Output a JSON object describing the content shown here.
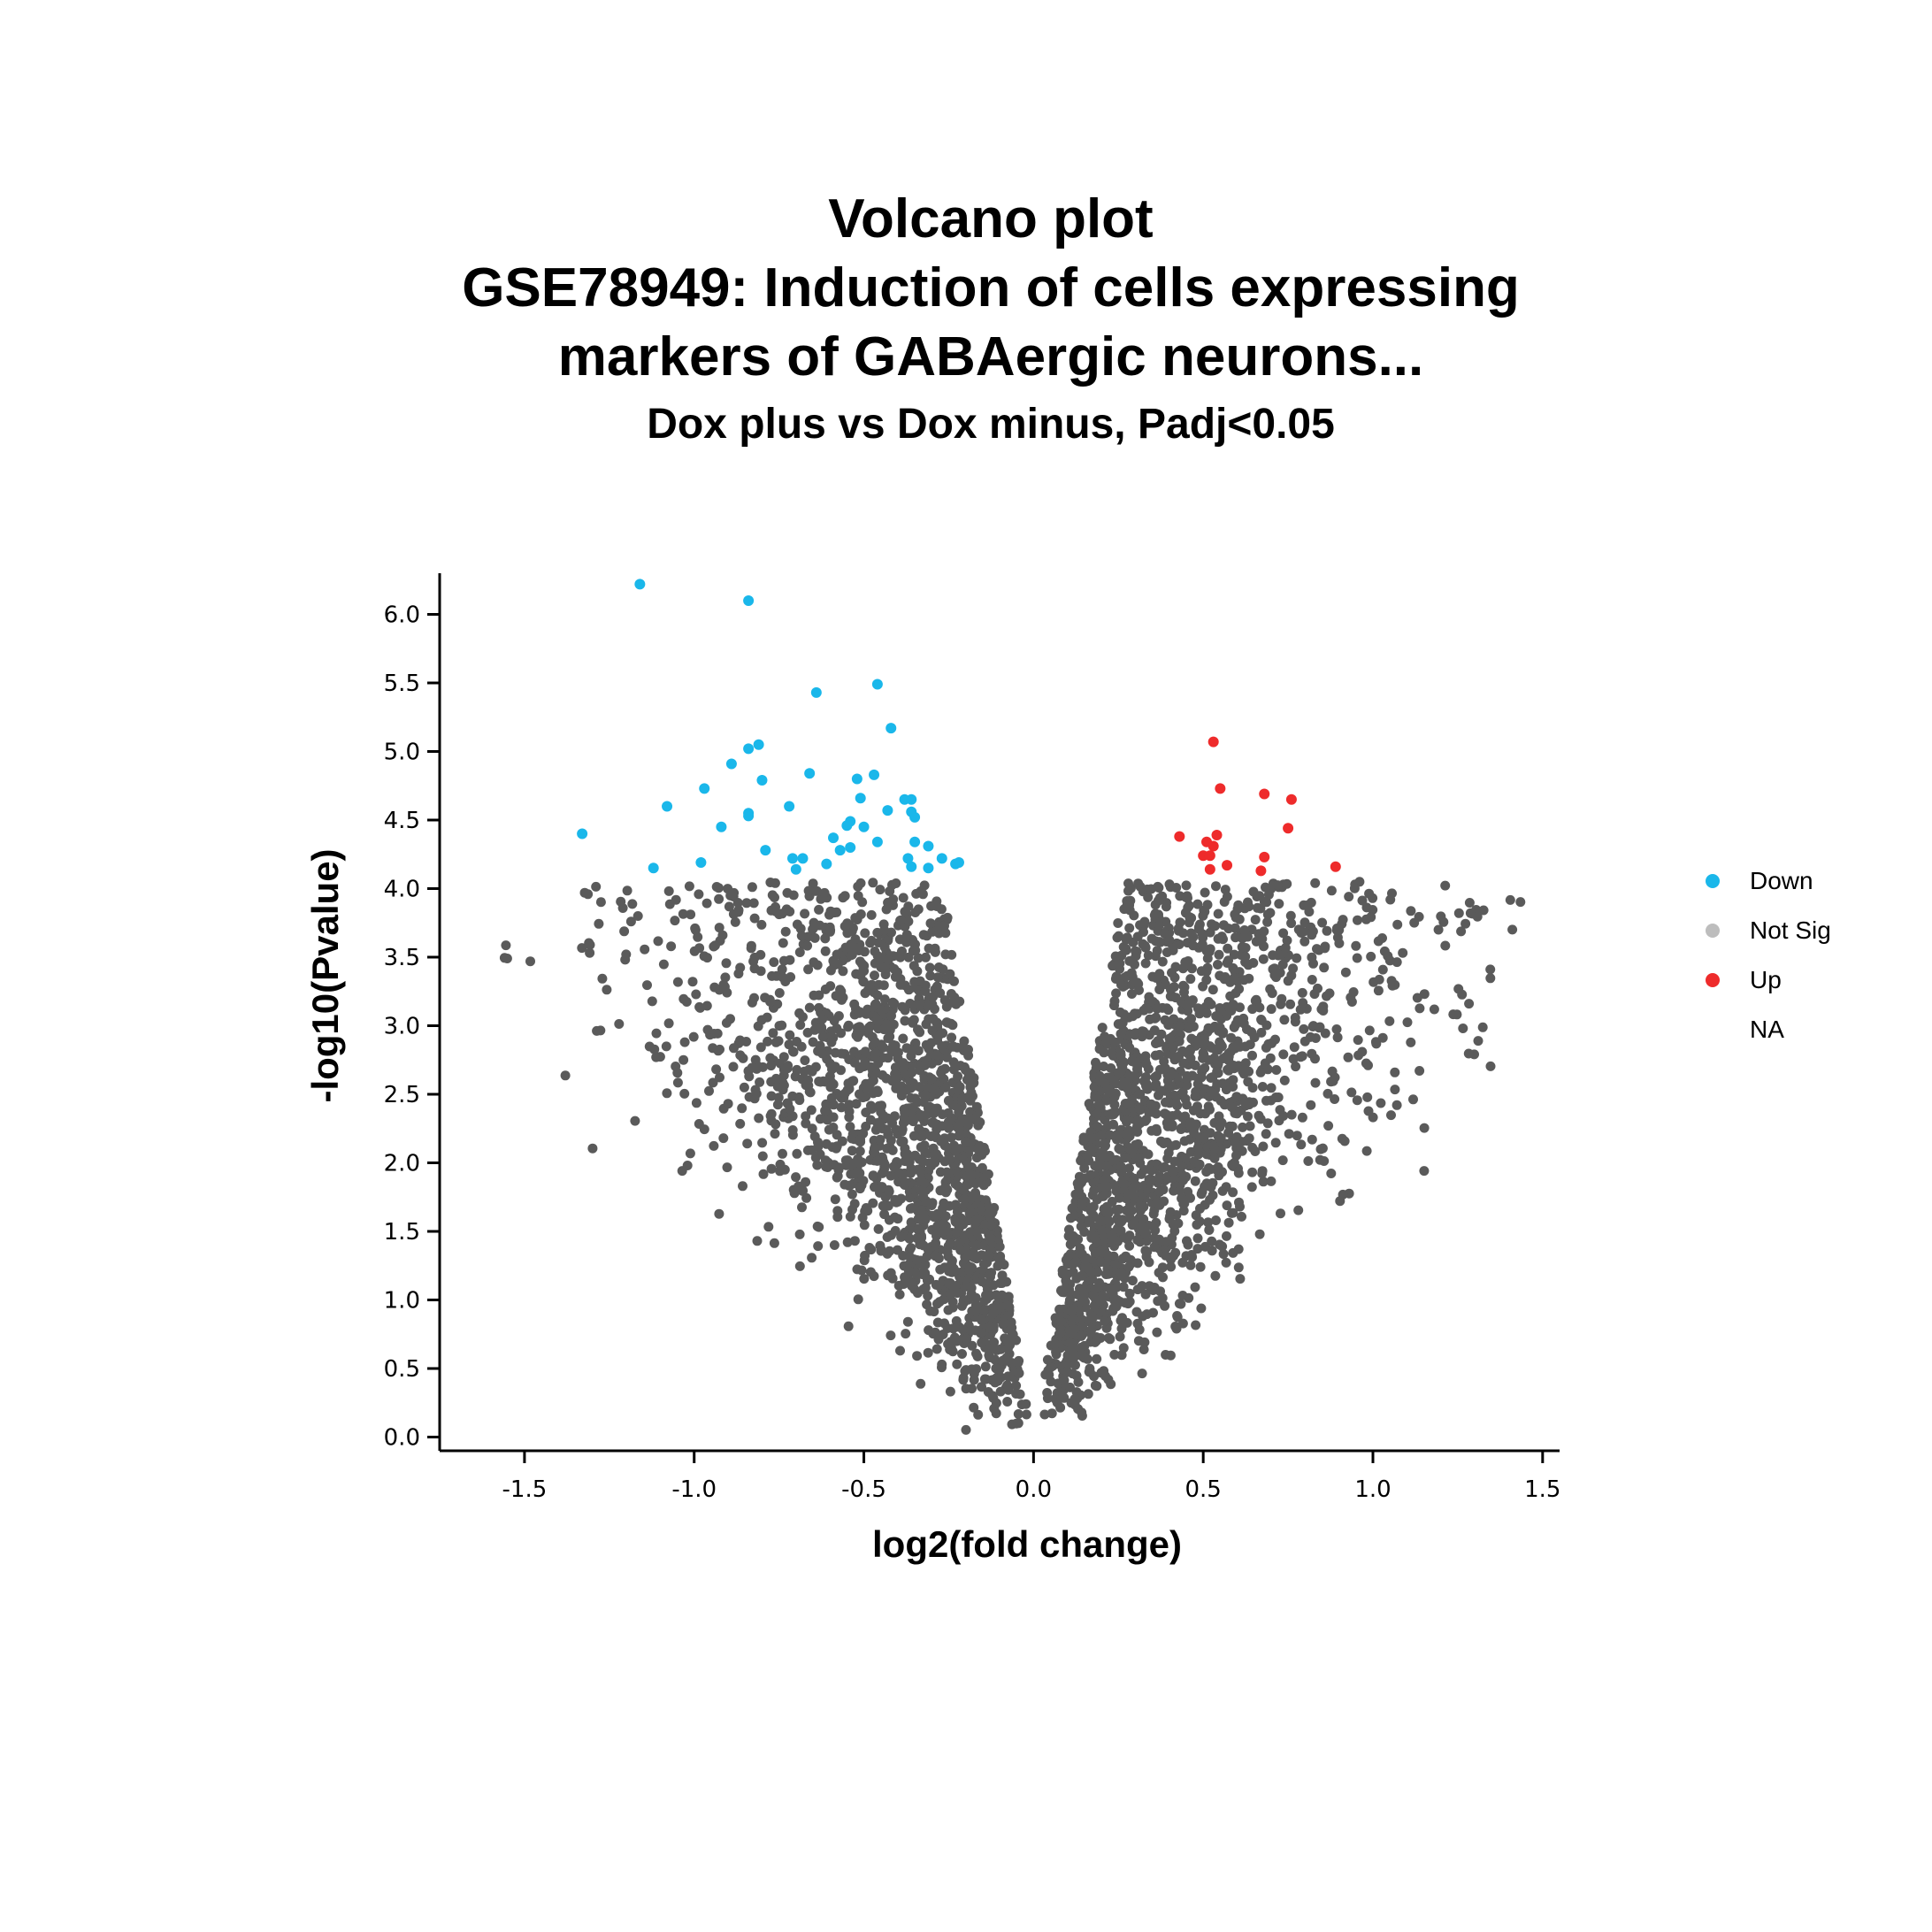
{
  "colors": {
    "down": "#1ab7ea",
    "not_sig": "#5a5a5a",
    "not_sig_legend": "#bdbdbd",
    "up": "#ee2b2b",
    "axis": "#000000"
  },
  "chart_data": {
    "type": "scatter",
    "title": "Volcano plot",
    "title_line2": "GSE78949: Induction of cells expressing",
    "title_line3": "markers of GABAergic neurons...",
    "subtitle": "Dox plus vs Dox minus, Padj<0.05",
    "xlabel": "log2(fold change)",
    "ylabel": "-log10(Pvalue)",
    "xlim": [
      -1.75,
      1.55
    ],
    "ylim": [
      -0.1,
      6.3
    ],
    "xticks": [
      -1.5,
      -1.0,
      -0.5,
      0.0,
      0.5,
      1.0,
      1.5
    ],
    "xtick_labels": [
      "-1.5",
      "-1.0",
      "-0.5",
      "0.0",
      "0.5",
      "1.0",
      "1.5"
    ],
    "yticks": [
      0.0,
      0.5,
      1.0,
      1.5,
      2.0,
      2.5,
      3.0,
      3.5,
      4.0,
      4.5,
      5.0,
      5.5,
      6.0
    ],
    "ytick_labels": [
      "0.0",
      "0.5",
      "1.0",
      "1.5",
      "2.0",
      "2.5",
      "3.0",
      "3.5",
      "4.0",
      "4.5",
      "5.0",
      "5.5",
      "6.0"
    ],
    "grid": false,
    "legend_position": "right",
    "legend": [
      {
        "label": "Down",
        "color": "#1ab7ea"
      },
      {
        "label": "Not Sig",
        "color": "#bdbdbd"
      },
      {
        "label": "Up",
        "color": "#ee2b2b"
      },
      {
        "label": "NA",
        "color": null
      }
    ],
    "series": [
      {
        "name": "Down",
        "color": "#1ab7ea",
        "points": [
          [
            -1.16,
            6.22
          ],
          [
            -0.84,
            6.1
          ],
          [
            -0.46,
            5.49
          ],
          [
            -0.64,
            5.43
          ],
          [
            -0.42,
            5.17
          ],
          [
            -0.81,
            5.05
          ],
          [
            -0.84,
            5.02
          ],
          [
            -0.89,
            4.91
          ],
          [
            -0.66,
            4.84
          ],
          [
            -0.47,
            4.83
          ],
          [
            -0.52,
            4.8
          ],
          [
            -0.8,
            4.79
          ],
          [
            -0.97,
            4.73
          ],
          [
            -0.51,
            4.66
          ],
          [
            -0.38,
            4.65
          ],
          [
            -0.36,
            4.65
          ],
          [
            -1.08,
            4.6
          ],
          [
            -0.72,
            4.6
          ],
          [
            -0.84,
            4.55
          ],
          [
            -0.84,
            4.53
          ],
          [
            -0.43,
            4.57
          ],
          [
            -0.36,
            4.56
          ],
          [
            -0.35,
            4.52
          ],
          [
            -0.54,
            4.49
          ],
          [
            -0.55,
            4.46
          ],
          [
            -0.5,
            4.45
          ],
          [
            -0.92,
            4.45
          ],
          [
            -1.33,
            4.4
          ],
          [
            -0.59,
            4.37
          ],
          [
            -0.46,
            4.34
          ],
          [
            -0.35,
            4.34
          ],
          [
            -0.31,
            4.31
          ],
          [
            -0.54,
            4.3
          ],
          [
            -0.57,
            4.28
          ],
          [
            -0.79,
            4.28
          ],
          [
            -0.71,
            4.22
          ],
          [
            -0.68,
            4.22
          ],
          [
            -0.37,
            4.22
          ],
          [
            -0.27,
            4.22
          ],
          [
            -0.98,
            4.19
          ],
          [
            -0.61,
            4.18
          ],
          [
            -0.23,
            4.18
          ],
          [
            -0.22,
            4.19
          ],
          [
            -1.12,
            4.15
          ],
          [
            -0.7,
            4.14
          ],
          [
            -0.36,
            4.16
          ],
          [
            -0.31,
            4.15
          ]
        ]
      },
      {
        "name": "Up",
        "color": "#ee2b2b",
        "points": [
          [
            0.53,
            5.07
          ],
          [
            0.55,
            4.73
          ],
          [
            0.68,
            4.69
          ],
          [
            0.76,
            4.65
          ],
          [
            0.75,
            4.44
          ],
          [
            0.54,
            4.39
          ],
          [
            0.43,
            4.38
          ],
          [
            0.51,
            4.34
          ],
          [
            0.53,
            4.31
          ],
          [
            0.5,
            4.24
          ],
          [
            0.52,
            4.24
          ],
          [
            0.68,
            4.23
          ],
          [
            0.57,
            4.17
          ],
          [
            0.89,
            4.16
          ],
          [
            0.52,
            4.14
          ],
          [
            0.67,
            4.13
          ]
        ]
      }
    ]
  }
}
